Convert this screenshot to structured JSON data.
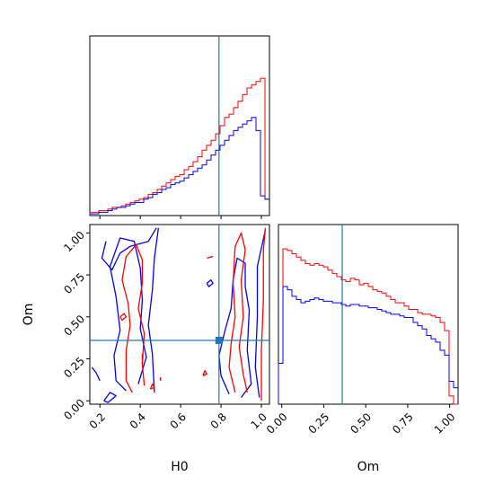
{
  "chart_data": {
    "type": "corner",
    "parameters": [
      "H0",
      "Om"
    ],
    "truth": {
      "H0": 0.79,
      "Om": 0.36
    },
    "colors": {
      "red": "#ff0000",
      "blue": "#0000ff",
      "truth": "#1f77b4"
    },
    "axis_labels": {
      "x_bottom_left": "H0",
      "x_bottom_right": "Om",
      "y_left": "Om"
    },
    "h0_ticks": [
      "0.2",
      "0.4",
      "0.6",
      "0.8",
      "1.0"
    ],
    "om_ticks": [
      "0.00",
      "0.25",
      "0.50",
      "0.75",
      "1.00"
    ],
    "h0_range": [
      0.15,
      1.04
    ],
    "om_range": [
      -0.02,
      1.05
    ],
    "h0_hist": {
      "edges": [
        0.15,
        0.1723,
        0.1945,
        0.2168,
        0.239,
        0.2613,
        0.2835,
        0.3058,
        0.328,
        0.3503,
        0.3725,
        0.3948,
        0.417,
        0.4393,
        0.4615,
        0.4838,
        0.506,
        0.5283,
        0.5505,
        0.5728,
        0.595,
        0.6173,
        0.6395,
        0.6618,
        0.684,
        0.7063,
        0.7285,
        0.7508,
        0.773,
        0.7953,
        0.8175,
        0.8398,
        0.862,
        0.8843,
        0.9065,
        0.9288,
        0.951,
        0.9733,
        0.9955,
        1.0178,
        1.04
      ],
      "red": [
        0.02,
        0.02,
        0.03,
        0.03,
        0.04,
        0.05,
        0.05,
        0.06,
        0.07,
        0.08,
        0.09,
        0.1,
        0.11,
        0.13,
        0.14,
        0.16,
        0.18,
        0.2,
        0.22,
        0.24,
        0.25,
        0.28,
        0.3,
        0.33,
        0.36,
        0.4,
        0.43,
        0.46,
        0.5,
        0.55,
        0.6,
        0.62,
        0.66,
        0.7,
        0.74,
        0.78,
        0.8,
        0.82,
        0.84,
        0.1
      ],
      "blue": [
        0.01,
        0.01,
        0.02,
        0.02,
        0.03,
        0.04,
        0.05,
        0.05,
        0.06,
        0.07,
        0.08,
        0.08,
        0.1,
        0.11,
        0.13,
        0.14,
        0.16,
        0.17,
        0.19,
        0.2,
        0.21,
        0.23,
        0.25,
        0.27,
        0.29,
        0.31,
        0.34,
        0.37,
        0.4,
        0.43,
        0.46,
        0.49,
        0.52,
        0.54,
        0.56,
        0.58,
        0.6,
        0.52,
        0.12,
        0.1
      ]
    },
    "om_hist": {
      "edges": [
        -0.02,
        0.0068,
        0.0335,
        0.0603,
        0.087,
        0.1138,
        0.1405,
        0.1673,
        0.194,
        0.2208,
        0.2475,
        0.2743,
        0.301,
        0.3278,
        0.3545,
        0.3813,
        0.408,
        0.4348,
        0.4615,
        0.4883,
        0.515,
        0.5418,
        0.5685,
        0.5953,
        0.622,
        0.6488,
        0.6755,
        0.7023,
        0.729,
        0.7558,
        0.7825,
        0.8093,
        0.836,
        0.8628,
        0.8895,
        0.9163,
        0.943,
        0.9698,
        0.9965,
        1.0233,
        1.05
      ],
      "red": [
        0.25,
        0.95,
        0.94,
        0.92,
        0.9,
        0.88,
        0.86,
        0.85,
        0.86,
        0.85,
        0.84,
        0.82,
        0.8,
        0.78,
        0.76,
        0.75,
        0.77,
        0.76,
        0.73,
        0.74,
        0.72,
        0.7,
        0.69,
        0.68,
        0.66,
        0.64,
        0.62,
        0.62,
        0.6,
        0.58,
        0.58,
        0.56,
        0.55,
        0.55,
        0.54,
        0.53,
        0.5,
        0.45,
        0.05,
        0.0
      ],
      "blue": [
        0.25,
        0.72,
        0.7,
        0.66,
        0.64,
        0.62,
        0.63,
        0.64,
        0.65,
        0.64,
        0.63,
        0.63,
        0.62,
        0.62,
        0.61,
        0.6,
        0.61,
        0.61,
        0.6,
        0.6,
        0.59,
        0.59,
        0.58,
        0.57,
        0.56,
        0.55,
        0.55,
        0.54,
        0.53,
        0.53,
        0.5,
        0.48,
        0.46,
        0.42,
        0.4,
        0.38,
        0.33,
        0.3,
        0.14,
        0.1
      ]
    },
    "contours_2d": [
      {
        "color": "#0000ff",
        "points": [
          [
            0.33,
            0.06
          ],
          [
            0.28,
            0.12
          ],
          [
            0.27,
            0.27
          ],
          [
            0.3,
            0.42
          ],
          [
            0.28,
            0.62
          ],
          [
            0.25,
            0.8
          ],
          [
            0.3,
            0.97
          ],
          [
            0.37,
            0.95
          ],
          [
            0.4,
            0.79
          ],
          [
            0.41,
            0.6
          ],
          [
            0.4,
            0.43
          ],
          [
            0.43,
            0.26
          ],
          [
            0.39,
            0.1
          ]
        ]
      },
      {
        "color": "#0000ff",
        "points": [
          [
            0.23,
            0.95
          ],
          [
            0.21,
            0.85
          ],
          [
            0.26,
            0.78
          ],
          [
            0.3,
            0.88
          ],
          [
            0.35,
            0.92
          ],
          [
            0.44,
            0.95
          ],
          [
            0.48,
            1.03
          ]
        ]
      },
      {
        "color": "#0000ff",
        "points": [
          [
            0.49,
            1.03
          ],
          [
            0.47,
            0.85
          ],
          [
            0.46,
            0.66
          ],
          [
            0.44,
            0.45
          ],
          [
            0.46,
            0.28
          ],
          [
            0.47,
            0.05
          ]
        ]
      },
      {
        "color": "#0000ff",
        "points": [
          [
            0.84,
            0.04
          ],
          [
            0.8,
            0.15
          ],
          [
            0.79,
            0.27
          ],
          [
            0.82,
            0.42
          ],
          [
            0.85,
            0.55
          ],
          [
            0.86,
            0.72
          ],
          [
            0.88,
            0.85
          ],
          [
            0.92,
            0.82
          ],
          [
            0.92,
            0.68
          ],
          [
            0.94,
            0.54
          ],
          [
            0.93,
            0.3
          ],
          [
            0.95,
            0.1
          ],
          [
            0.9,
            0.02
          ]
        ]
      },
      {
        "color": "#0000ff",
        "points": [
          [
            0.99,
            0.02
          ],
          [
            0.97,
            0.2
          ],
          [
            0.98,
            0.5
          ],
          [
            0.98,
            0.8
          ],
          [
            1.02,
            1.02
          ]
        ]
      },
      {
        "color": "#0000ff",
        "points": [
          [
            0.22,
            0.0
          ],
          [
            0.25,
            0.05
          ],
          [
            0.28,
            0.03
          ],
          [
            0.24,
            -0.01
          ],
          [
            0.22,
            0.0
          ]
        ]
      },
      {
        "color": "#0000ff",
        "points": [
          [
            0.16,
            0.2
          ],
          [
            0.18,
            0.17
          ],
          [
            0.2,
            0.12
          ]
        ]
      },
      {
        "color": "#0000ff",
        "points": [
          [
            0.73,
            0.7
          ],
          [
            0.75,
            0.72
          ],
          [
            0.76,
            0.7
          ],
          [
            0.74,
            0.68
          ],
          [
            0.73,
            0.7
          ]
        ]
      },
      {
        "color": "#ff0000",
        "points": [
          [
            0.36,
            0.05
          ],
          [
            0.33,
            0.12
          ],
          [
            0.33,
            0.3
          ],
          [
            0.35,
            0.45
          ],
          [
            0.34,
            0.58
          ],
          [
            0.31,
            0.72
          ],
          [
            0.33,
            0.86
          ],
          [
            0.38,
            0.93
          ],
          [
            0.41,
            0.84
          ],
          [
            0.41,
            0.7
          ],
          [
            0.39,
            0.55
          ],
          [
            0.42,
            0.4
          ],
          [
            0.41,
            0.22
          ],
          [
            0.42,
            0.09
          ]
        ]
      },
      {
        "color": "#ff0000",
        "points": [
          [
            0.87,
            0.05
          ],
          [
            0.84,
            0.2
          ],
          [
            0.85,
            0.34
          ],
          [
            0.87,
            0.5
          ],
          [
            0.86,
            0.7
          ],
          [
            0.87,
            0.92
          ],
          [
            0.9,
            1.0
          ],
          [
            0.92,
            0.9
          ],
          [
            0.9,
            0.72
          ],
          [
            0.91,
            0.5
          ],
          [
            0.89,
            0.32
          ],
          [
            0.91,
            0.16
          ],
          [
            0.93,
            0.05
          ]
        ]
      },
      {
        "color": "#ff0000",
        "points": [
          [
            1.0,
            0.0
          ],
          [
            1.0,
            0.3
          ],
          [
            1.01,
            0.6
          ],
          [
            1.01,
            0.9
          ],
          [
            1.02,
            1.03
          ]
        ]
      },
      {
        "color": "#ff0000",
        "points": [
          [
            0.3,
            0.5
          ],
          [
            0.32,
            0.52
          ],
          [
            0.33,
            0.5
          ],
          [
            0.31,
            0.48
          ],
          [
            0.3,
            0.5
          ]
        ]
      },
      {
        "color": "#ff0000",
        "points": [
          [
            0.45,
            0.07
          ],
          [
            0.46,
            0.1
          ],
          [
            0.47,
            0.08
          ],
          [
            0.45,
            0.07
          ]
        ]
      },
      {
        "color": "#ff0000",
        "points": [
          [
            0.71,
            0.15
          ],
          [
            0.72,
            0.18
          ],
          [
            0.73,
            0.16
          ],
          [
            0.71,
            0.15
          ]
        ]
      },
      {
        "color": "#ff0000",
        "points": [
          [
            0.73,
            0.85
          ],
          [
            0.76,
            0.86
          ]
        ]
      },
      {
        "color": "#ff0000",
        "points": [
          [
            0.5,
            0.14
          ],
          [
            0.5,
            0.12
          ]
        ]
      },
      {
        "color": "#ff0000",
        "points": [
          [
            0.41,
            0.28
          ],
          [
            0.41,
            0.22
          ]
        ]
      }
    ]
  }
}
